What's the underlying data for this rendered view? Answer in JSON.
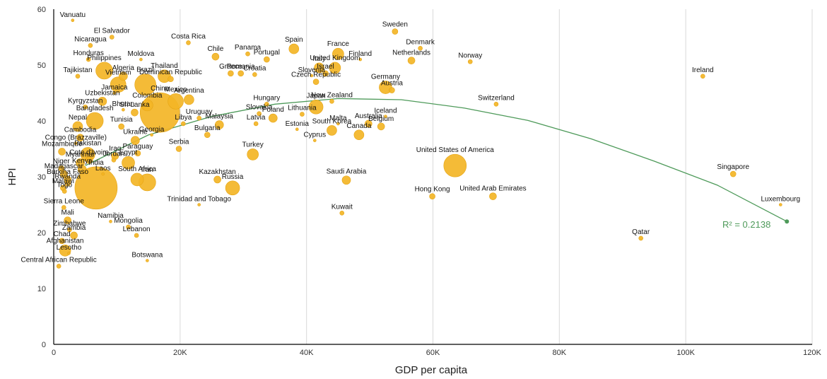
{
  "colors": {
    "bubble": "#F3B526",
    "bubble_stroke": "#E6A514",
    "trend": "#4E9A5A",
    "grid": "#D9D9D9",
    "axis": "#000000"
  },
  "chart_data": {
    "type": "scatter",
    "xlabel": "GDP per capita",
    "ylabel": "HPI",
    "xlim": [
      0,
      120000
    ],
    "ylim": [
      0,
      60
    ],
    "x_ticks": [
      0,
      20000,
      40000,
      60000,
      80000,
      100000,
      120000
    ],
    "x_tick_labels": [
      "0",
      "20K",
      "40K",
      "60K",
      "80K",
      "100K",
      "120K"
    ],
    "y_ticks": [
      0,
      10,
      20,
      30,
      40,
      50,
      60
    ],
    "y_tick_labels": [
      "0",
      "10",
      "20",
      "30",
      "40",
      "50",
      "60"
    ],
    "grid": "vertical",
    "trendline": {
      "type": "polynomial",
      "r2_label": "R² = 0.2138",
      "x_range": [
        5000,
        116000
      ],
      "points": [
        [
          5000,
          32.0
        ],
        [
          15000,
          37.5
        ],
        [
          25000,
          40.8
        ],
        [
          35000,
          43.0
        ],
        [
          45000,
          44.0
        ],
        [
          55000,
          43.8
        ],
        [
          65000,
          42.3
        ],
        [
          75000,
          40.1
        ],
        [
          85000,
          36.8
        ],
        [
          95000,
          32.8
        ],
        [
          105000,
          28.5
        ],
        [
          116000,
          22.0
        ]
      ]
    },
    "points": [
      {
        "label": "Vanuatu",
        "x": 3000,
        "y": 58,
        "size": 2
      },
      {
        "label": "El Salvador",
        "x": 9200,
        "y": 55,
        "size": 3
      },
      {
        "label": "Nicaragua",
        "x": 5800,
        "y": 53.5,
        "size": 3
      },
      {
        "label": "Costa Rica",
        "x": 21300,
        "y": 54,
        "size": 3
      },
      {
        "label": "Panama",
        "x": 30700,
        "y": 52,
        "size": 3
      },
      {
        "label": "Spain",
        "x": 38000,
        "y": 52.9,
        "size": 7
      },
      {
        "label": "France",
        "x": 45000,
        "y": 52,
        "size": 8
      },
      {
        "label": "Sweden",
        "x": 54000,
        "y": 56,
        "size": 4
      },
      {
        "label": "Denmark",
        "x": 58000,
        "y": 53,
        "size": 3
      },
      {
        "label": "Honduras",
        "x": 5500,
        "y": 51,
        "size": 3
      },
      {
        "label": "Moldova",
        "x": 13800,
        "y": 51,
        "size": 2
      },
      {
        "label": "Chile",
        "x": 25600,
        "y": 51.5,
        "size": 5
      },
      {
        "label": "Portugal",
        "x": 33700,
        "y": 51,
        "size": 4
      },
      {
        "label": "Italy",
        "x": 42000,
        "y": 49.5,
        "size": 7
      },
      {
        "label": "Finland",
        "x": 48500,
        "y": 51,
        "size": 2
      },
      {
        "label": "Netherlands",
        "x": 56600,
        "y": 50.8,
        "size": 5
      },
      {
        "label": "Norway",
        "x": 65900,
        "y": 50.6,
        "size": 3
      },
      {
        "label": "United Kingdom",
        "x": 44500,
        "y": 49.5,
        "size": 8
      },
      {
        "label": "Israel",
        "x": 43000,
        "y": 48.5,
        "size": 4
      },
      {
        "label": "Romania",
        "x": 29600,
        "y": 48.5,
        "size": 4
      },
      {
        "label": "Croatia",
        "x": 31800,
        "y": 48.3,
        "size": 3
      },
      {
        "label": "Greece",
        "x": 28000,
        "y": 48.5,
        "size": 4
      },
      {
        "label": "Slovenia",
        "x": 40800,
        "y": 48.1,
        "size": 2
      },
      {
        "label": "Czech Republic",
        "x": 41500,
        "y": 47,
        "size": 4
      },
      {
        "label": "Ireland",
        "x": 102700,
        "y": 48,
        "size": 3
      },
      {
        "label": "Philippines",
        "x": 8000,
        "y": 49,
        "size": 12
      },
      {
        "label": "Algeria",
        "x": 11000,
        "y": 48,
        "size": 6
      },
      {
        "label": "Tajikistan",
        "x": 3800,
        "y": 48,
        "size": 3
      },
      {
        "label": "Thailand",
        "x": 17500,
        "y": 48,
        "size": 9
      },
      {
        "label": "Dominican Republic",
        "x": 18500,
        "y": 47.5,
        "size": 4
      },
      {
        "label": "Brazil",
        "x": 14500,
        "y": 46.5,
        "size": 15
      },
      {
        "label": "Vietnam",
        "x": 10200,
        "y": 46.5,
        "size": 11
      },
      {
        "label": "Germany",
        "x": 52500,
        "y": 46,
        "size": 9
      },
      {
        "label": "Austria",
        "x": 53500,
        "y": 45.5,
        "size": 4
      },
      {
        "label": "Jamaica",
        "x": 9600,
        "y": 45,
        "size": 2
      },
      {
        "label": "Argentina",
        "x": 21400,
        "y": 43.8,
        "size": 7
      },
      {
        "label": "Uzbekistan",
        "x": 7700,
        "y": 43.5,
        "size": 6
      },
      {
        "label": "Mexico",
        "x": 19300,
        "y": 43.5,
        "size": 11
      },
      {
        "label": "Colombia",
        "x": 14800,
        "y": 42.8,
        "size": 8
      },
      {
        "label": "Hungary",
        "x": 33700,
        "y": 43,
        "size": 3
      },
      {
        "label": "Japan",
        "x": 41500,
        "y": 42.5,
        "size": 10
      },
      {
        "label": "New Zealand",
        "x": 44000,
        "y": 43.5,
        "size": 3
      },
      {
        "label": "Switzerland",
        "x": 70000,
        "y": 43,
        "size": 3
      },
      {
        "label": "Bhutan",
        "x": 11000,
        "y": 42,
        "size": 2
      },
      {
        "label": "China",
        "x": 16800,
        "y": 41.5,
        "size": 28
      },
      {
        "label": "Kyrgyzstan",
        "x": 5000,
        "y": 42.5,
        "size": 3
      },
      {
        "label": "Sri Lanka",
        "x": 12800,
        "y": 41.5,
        "size": 5
      },
      {
        "label": "Slovakia",
        "x": 32500,
        "y": 41.3,
        "size": 3
      },
      {
        "label": "Poland",
        "x": 34700,
        "y": 40.5,
        "size": 6
      },
      {
        "label": "Lithuania",
        "x": 39300,
        "y": 41.2,
        "size": 3
      },
      {
        "label": "Uruguay",
        "x": 23000,
        "y": 40.5,
        "size": 3
      },
      {
        "label": "Iceland",
        "x": 52500,
        "y": 40.8,
        "size": 2
      },
      {
        "label": "Bangladesh",
        "x": 6500,
        "y": 40,
        "size": 12
      },
      {
        "label": "Tunisia",
        "x": 10700,
        "y": 39,
        "size": 4
      },
      {
        "label": "Libya",
        "x": 20500,
        "y": 39.5,
        "size": 3
      },
      {
        "label": "Malaysia",
        "x": 26200,
        "y": 39.3,
        "size": 6
      },
      {
        "label": "Latvia",
        "x": 32000,
        "y": 39.5,
        "size": 3
      },
      {
        "label": "Estonia",
        "x": 38500,
        "y": 38.5,
        "size": 2
      },
      {
        "label": "Malta",
        "x": 45000,
        "y": 39.5,
        "size": 2
      },
      {
        "label": "South Korea",
        "x": 44000,
        "y": 38.3,
        "size": 7
      },
      {
        "label": "Australia",
        "x": 49800,
        "y": 39.5,
        "size": 5
      },
      {
        "label": "Belgium",
        "x": 51800,
        "y": 39,
        "size": 5
      },
      {
        "label": "Canada",
        "x": 48300,
        "y": 37.5,
        "size": 7
      },
      {
        "label": "Nepal",
        "x": 3800,
        "y": 39,
        "size": 7
      },
      {
        "label": "Georgia",
        "x": 15500,
        "y": 37.5,
        "size": 2
      },
      {
        "label": "Bulgaria",
        "x": 24300,
        "y": 37.5,
        "size": 4
      },
      {
        "label": "Cyprus",
        "x": 41300,
        "y": 36.5,
        "size": 2
      },
      {
        "label": "Cambodia",
        "x": 4200,
        "y": 37,
        "size": 5
      },
      {
        "label": "Ukraine",
        "x": 12900,
        "y": 36.5,
        "size": 6
      },
      {
        "label": "Congo (Brazzaville)",
        "x": 3500,
        "y": 36,
        "size": 2
      },
      {
        "label": "Paraguay",
        "x": 13300,
        "y": 34.2,
        "size": 4
      },
      {
        "label": "Serbia",
        "x": 19800,
        "y": 35,
        "size": 4
      },
      {
        "label": "Turkey",
        "x": 31500,
        "y": 34,
        "size": 8
      },
      {
        "label": "Mozambique",
        "x": 1300,
        "y": 34.5,
        "size": 5
      },
      {
        "label": "Pakistan",
        "x": 5400,
        "y": 34,
        "size": 10
      },
      {
        "label": "Iraq",
        "x": 9700,
        "y": 33.7,
        "size": 5
      },
      {
        "label": "Jordan",
        "x": 9500,
        "y": 33,
        "size": 3
      },
      {
        "label": "Cote d'Ivoire",
        "x": 5600,
        "y": 33,
        "size": 5
      },
      {
        "label": "Egypt",
        "x": 11800,
        "y": 32.5,
        "size": 9
      },
      {
        "label": "Myanmar",
        "x": 4200,
        "y": 32.5,
        "size": 6
      },
      {
        "label": "Niger",
        "x": 1200,
        "y": 31.5,
        "size": 4
      },
      {
        "label": "Kenya",
        "x": 4500,
        "y": 31.3,
        "size": 6
      },
      {
        "label": "Madagascar",
        "x": 1600,
        "y": 30.5,
        "size": 5
      },
      {
        "label": "South Africa",
        "x": 13200,
        "y": 29.5,
        "size": 9
      },
      {
        "label": "Laos",
        "x": 7800,
        "y": 30.5,
        "size": 2
      },
      {
        "label": "Burkina Faso",
        "x": 2200,
        "y": 29.5,
        "size": 5
      },
      {
        "label": "Iran",
        "x": 14800,
        "y": 29,
        "size": 12
      },
      {
        "label": "Kazakhstan",
        "x": 25900,
        "y": 29.5,
        "size": 5
      },
      {
        "label": "Saudi Arabia",
        "x": 46300,
        "y": 29.4,
        "size": 6
      },
      {
        "label": "Rwanda",
        "x": 2200,
        "y": 28.8,
        "size": 4
      },
      {
        "label": "Malawi",
        "x": 1500,
        "y": 28,
        "size": 4
      },
      {
        "label": "India",
        "x": 6700,
        "y": 28,
        "size": 30
      },
      {
        "label": "Russia",
        "x": 28300,
        "y": 28,
        "size": 10
      },
      {
        "label": "Togo",
        "x": 1700,
        "y": 27.4,
        "size": 3
      },
      {
        "label": "Hong Kong",
        "x": 59900,
        "y": 26.5,
        "size": 4
      },
      {
        "label": "United Arab Emirates",
        "x": 69500,
        "y": 26.5,
        "size": 5
      },
      {
        "label": "United States of America",
        "x": 63500,
        "y": 32,
        "size": 16
      },
      {
        "label": "Singapore",
        "x": 107500,
        "y": 30.5,
        "size": 4
      },
      {
        "label": "Sierra Leone",
        "x": 1600,
        "y": 24.5,
        "size": 3
      },
      {
        "label": "Trinidad and Tobago",
        "x": 23000,
        "y": 25,
        "size": 2
      },
      {
        "label": "Kuwait",
        "x": 45600,
        "y": 23.5,
        "size": 3
      },
      {
        "label": "Luxembourg",
        "x": 115000,
        "y": 25,
        "size": 2
      },
      {
        "label": "Mali",
        "x": 2200,
        "y": 22.2,
        "size": 5
      },
      {
        "label": "Namibia",
        "x": 9000,
        "y": 22,
        "size": 2
      },
      {
        "label": "Mongolia",
        "x": 11800,
        "y": 21,
        "size": 3
      },
      {
        "label": "Zimbabwe",
        "x": 2500,
        "y": 20.5,
        "size": 3
      },
      {
        "label": "Zambia",
        "x": 3200,
        "y": 19.5,
        "size": 5
      },
      {
        "label": "Lebanon",
        "x": 13100,
        "y": 19.5,
        "size": 3
      },
      {
        "label": "Chad",
        "x": 1300,
        "y": 18.5,
        "size": 4
      },
      {
        "label": "Qatar",
        "x": 92900,
        "y": 19,
        "size": 3
      },
      {
        "label": "Afghanistan",
        "x": 1800,
        "y": 16.8,
        "size": 8
      },
      {
        "label": "Lesotho",
        "x": 2400,
        "y": 16.3,
        "size": 2
      },
      {
        "label": "Botswana",
        "x": 14800,
        "y": 15,
        "size": 2
      },
      {
        "label": "Central African Republic",
        "x": 800,
        "y": 14,
        "size": 3
      }
    ]
  }
}
